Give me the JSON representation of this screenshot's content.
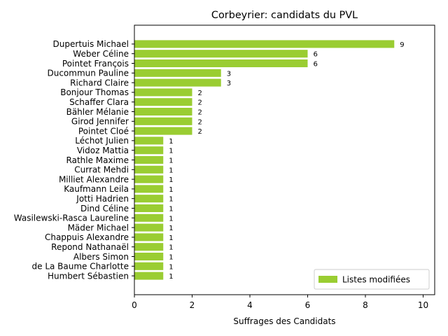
{
  "chart_data": {
    "type": "bar",
    "orientation": "horizontal",
    "title": "Corbeyrier: candidats du PVL",
    "xlabel": "Suffrages des Candidats",
    "ylabel": "",
    "xlim": [
      0,
      10.4
    ],
    "xticks": [
      0,
      2,
      4,
      6,
      8,
      10
    ],
    "grid": false,
    "legend_position": "lower-right",
    "bar_color": "#9acd32",
    "categories": [
      "Dupertuis Michael",
      "Weber Céline",
      "Pointet François",
      "Ducommun Pauline",
      "Richard Claire",
      "Bonjour Thomas",
      "Schaffer Clara",
      "Bähler Mélanie",
      "Girod Jennifer",
      "Pointet Cloé",
      "Léchot Julien",
      "Vidoz Mattia",
      "Rathle Maxime",
      "Currat Mehdi",
      "Milliet Alexandre",
      "Kaufmann Leila",
      "Jotti Hadrien",
      "Dind Céline",
      "Wasilewski-Rasca Laureline",
      "Mäder Michael",
      "Chappuis Alexandre",
      "Repond Nathanaël",
      "Albers Simon",
      "de La Baume Charlotte",
      "Humbert Sébastien"
    ],
    "series": [
      {
        "name": "Listes modifiées",
        "values": [
          9,
          6,
          6,
          3,
          3,
          2,
          2,
          2,
          2,
          2,
          1,
          1,
          1,
          1,
          1,
          1,
          1,
          1,
          1,
          1,
          1,
          1,
          1,
          1,
          1
        ]
      }
    ]
  }
}
